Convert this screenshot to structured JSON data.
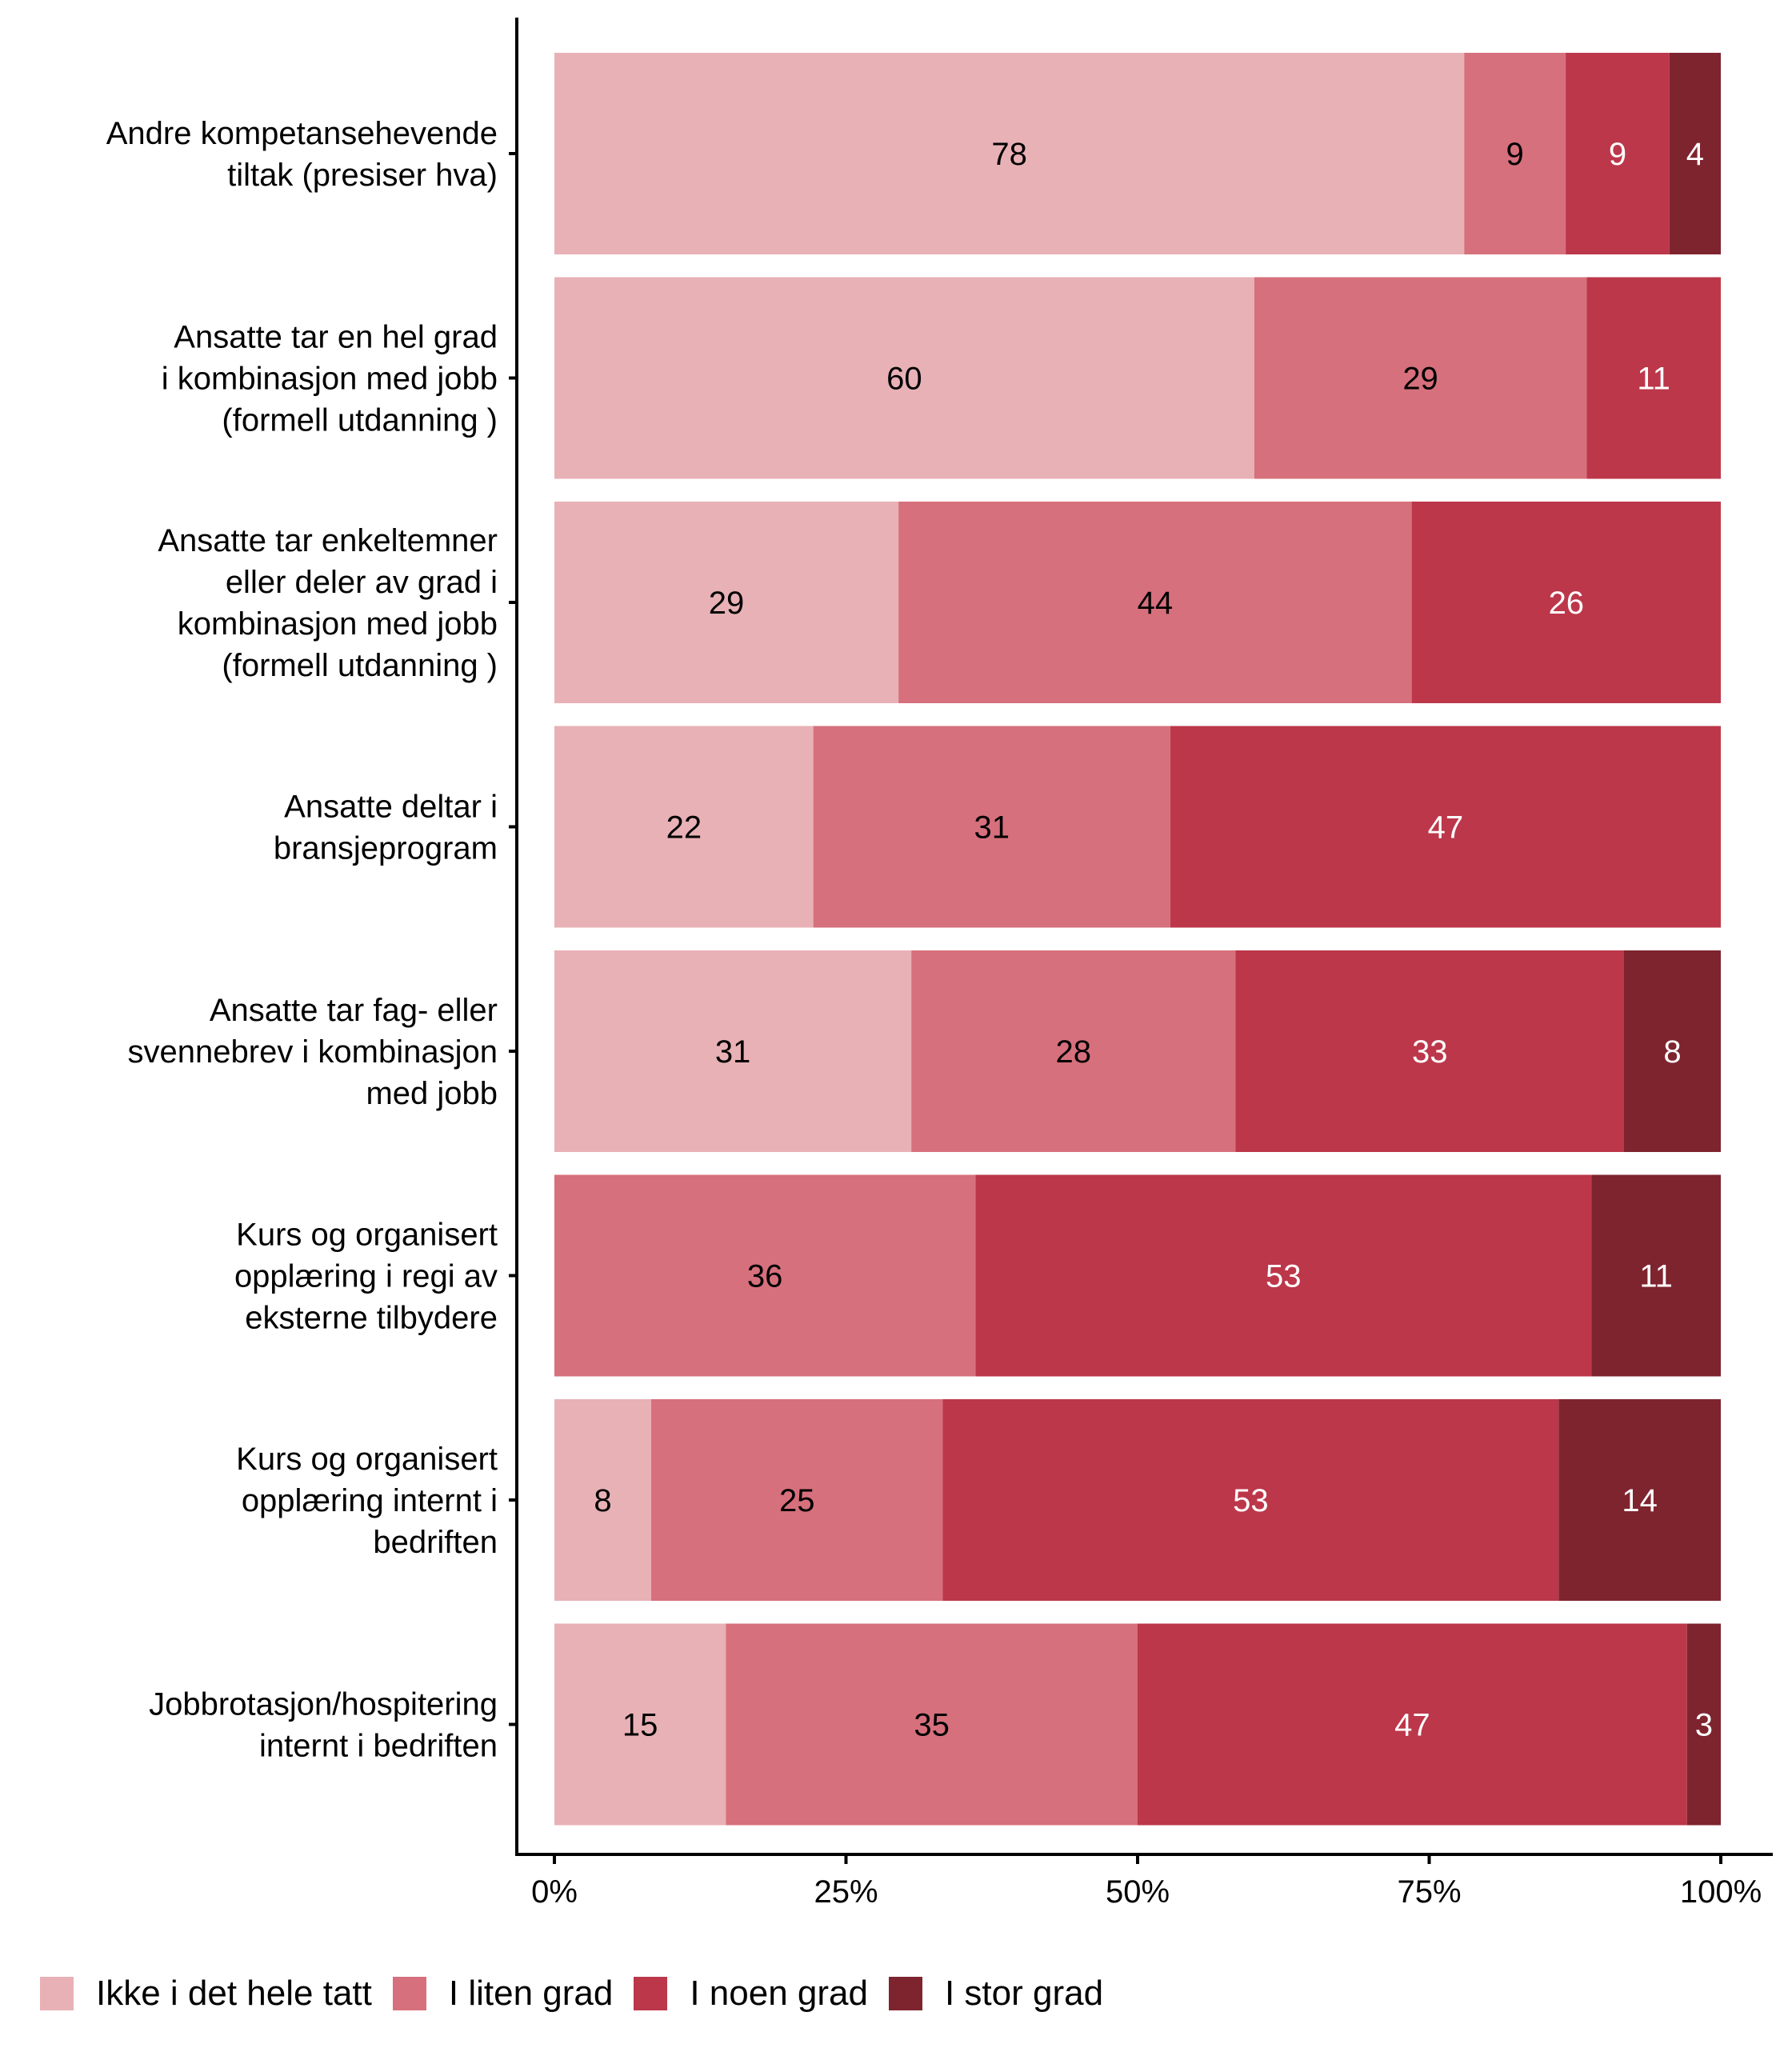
{
  "chart_data": {
    "type": "bar",
    "orientation": "horizontal",
    "stacked": true,
    "title": "",
    "xlabel": "",
    "ylabel": "",
    "xlim": [
      0,
      100
    ],
    "x_ticks": [
      "0%",
      "25%",
      "50%",
      "75%",
      "100%"
    ],
    "x_tick_values": [
      0,
      25,
      50,
      75,
      100
    ],
    "grid": false,
    "legend_position": "bottom",
    "categories": [
      [
        "Andre kompetansehevende",
        "tiltak (presiser hva)"
      ],
      [
        "Ansatte tar en hel grad",
        "i kombinasjon med jobb",
        "(formell utdanning )"
      ],
      [
        "Ansatte tar enkeltemner",
        "eller deler av grad i",
        "kombinasjon med jobb",
        "(formell utdanning )"
      ],
      [
        "Ansatte deltar i",
        "bransjeprogram"
      ],
      [
        "Ansatte tar fag- eller",
        "svennebrev i kombinasjon",
        "med jobb"
      ],
      [
        "Kurs og organisert",
        "opplæring i regi av",
        "eksterne tilbydere"
      ],
      [
        "Kurs og organisert",
        "opplæring internt i",
        "bedriften"
      ],
      [
        "Jobbrotasjon/hospitering",
        "internt i bedriften"
      ]
    ],
    "series": [
      {
        "name": "Ikke i det hele tatt",
        "color": "#E8B1B6",
        "label_color": "#000000",
        "values": [
          78,
          60,
          29.5,
          22.2,
          30.6,
          0,
          8.3,
          14.7
        ]
      },
      {
        "name": "I liten grad",
        "color": "#D6707C",
        "label_color": "#000000",
        "values": [
          8.7,
          28.5,
          44,
          30.6,
          27.8,
          36.1,
          25,
          35.3
        ]
      },
      {
        "name": "I noen grad",
        "color": "#BC374A",
        "label_color": "#ffffff",
        "values": [
          8.9,
          11.5,
          26.5,
          47.2,
          33.3,
          52.8,
          52.8,
          47.1
        ]
      },
      {
        "name": "I stor grad",
        "color": "#7E242F",
        "label_color": "#ffffff",
        "values": [
          4.4,
          0,
          0,
          0,
          8.3,
          11.1,
          13.9,
          2.9
        ]
      }
    ],
    "data_labels": [
      [
        "78",
        "9",
        "9",
        "4"
      ],
      [
        "60",
        "29",
        "11",
        ""
      ],
      [
        "29",
        "44",
        "26",
        ""
      ],
      [
        "22",
        "31",
        "47",
        ""
      ],
      [
        "31",
        "28",
        "33",
        "8"
      ],
      [
        "",
        "36",
        "53",
        "11"
      ],
      [
        "8",
        "25",
        "53",
        "14"
      ],
      [
        "15",
        "35",
        "47",
        "3"
      ]
    ]
  },
  "legend": [
    {
      "label": "Ikke i det hele tatt",
      "color": "#E8B1B6"
    },
    {
      "label": "I liten grad",
      "color": "#D6707C"
    },
    {
      "label": "I noen grad",
      "color": "#BC374A"
    },
    {
      "label": "I stor grad",
      "color": "#7E242F"
    }
  ]
}
